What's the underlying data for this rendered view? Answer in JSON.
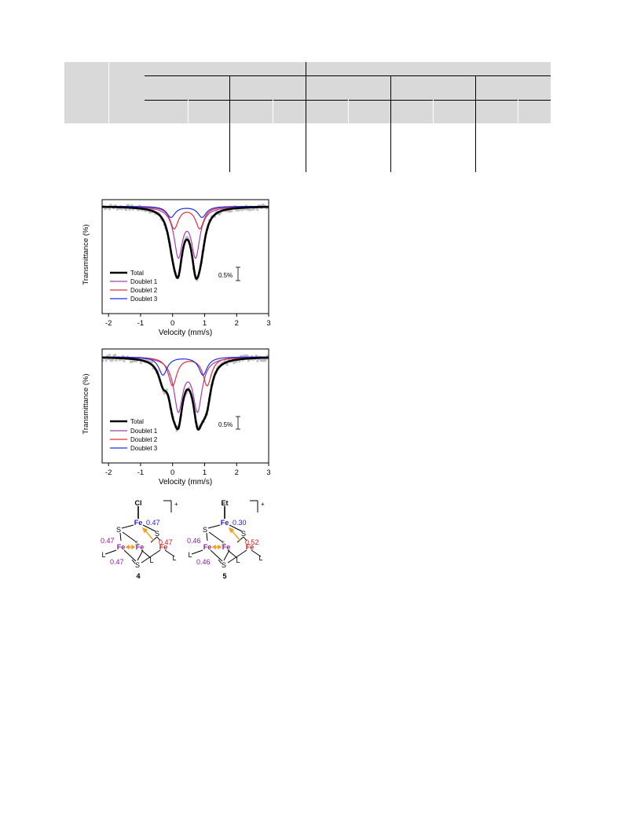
{
  "tables": {
    "header_fill": "#d9d9d9",
    "rule_color": "#000000"
  },
  "charts": {
    "chart_data": [
      {
        "type": "line",
        "xlabel": "Velocity (mm/s)",
        "ylabel": "Transmittance (%)",
        "xlim": [
          -2.2,
          3.0
        ],
        "ylim": [
          -2.45,
          0.15
        ],
        "xticks": [
          -2,
          -1,
          0,
          1,
          2,
          3
        ],
        "scale_bar_label": "0.5%",
        "legend_position": "left",
        "legend": [
          "Total",
          "Doublet 1",
          "Doublet 2",
          "Doublet 3"
        ],
        "series": [
          {
            "name": "Doublet 1",
            "color": "#a040b0",
            "width": 0.16,
            "peaks": [
              [
                0.18,
                -1.1
              ],
              [
                0.72,
                -1.1
              ]
            ]
          },
          {
            "name": "Doublet 2",
            "color": "#e0303a",
            "width": 0.16,
            "peaks": [
              [
                0.05,
                -0.5
              ],
              [
                0.85,
                -0.5
              ]
            ]
          },
          {
            "name": "Doublet 3",
            "color": "#2030e0",
            "width": 0.16,
            "peaks": [
              [
                -0.05,
                -0.25
              ],
              [
                0.92,
                -0.25
              ]
            ]
          },
          {
            "name": "Total",
            "color": "#000000",
            "sum_of": [
              "Doublet 1",
              "Doublet 2",
              "Doublet 3"
            ]
          }
        ]
      },
      {
        "type": "line",
        "xlabel": "Velocity (mm/s)",
        "ylabel": "Transmittance (%)",
        "xlim": [
          -2.2,
          3.0
        ],
        "ylim": [
          -2.05,
          0.15
        ],
        "xticks": [
          -2,
          -1,
          0,
          1,
          2,
          3
        ],
        "scale_bar_label": "0.5%",
        "legend_position": "left",
        "legend": [
          "Total",
          "Doublet 1",
          "Doublet 2",
          "Doublet 3"
        ],
        "series": [
          {
            "name": "Doublet 1",
            "color": "#a040b0",
            "width": 0.17,
            "peaks": [
              [
                0.18,
                -1.0
              ],
              [
                0.78,
                -1.0
              ]
            ]
          },
          {
            "name": "Doublet 2",
            "color": "#e0303a",
            "width": 0.16,
            "peaks": [
              [
                0.0,
                -0.55
              ],
              [
                1.08,
                -0.55
              ]
            ]
          },
          {
            "name": "Doublet 3",
            "color": "#2030e0",
            "width": 0.16,
            "peaks": [
              [
                -0.3,
                -0.35
              ],
              [
                0.95,
                -0.35
              ]
            ]
          },
          {
            "name": "Total",
            "color": "#000000",
            "sum_of": [
              "Doublet 1",
              "Doublet 2",
              "Doublet 3"
            ]
          }
        ]
      }
    ]
  },
  "structures": [
    {
      "label": "4",
      "apex_ligand": "Cl",
      "charge": "+",
      "atoms": {
        "fe_top": "Fe",
        "fe_left": "Fe",
        "fe_mid": "Fe",
        "fe_right": "Fe",
        "s_left": "S",
        "s_right": "S",
        "s_back": "S",
        "s_bottom": "S"
      },
      "ligands": {
        "l_left": "L",
        "l_mid": "L",
        "l_right": "L"
      },
      "values": {
        "top": "0.47",
        "left": "0.47",
        "right": "0.47",
        "bottom": "0.47"
      }
    },
    {
      "label": "5",
      "apex_ligand": "Et",
      "charge": "+",
      "atoms": {
        "fe_top": "Fe",
        "fe_left": "Fe",
        "fe_mid": "Fe",
        "fe_right": "Fe",
        "s_left": "S",
        "s_right": "S",
        "s_back": "S",
        "s_bottom": "S"
      },
      "ligands": {
        "l_left": "L",
        "l_mid": "L",
        "l_right": "L"
      },
      "values": {
        "top": "0.30",
        "left": "0.46",
        "right": "0.52",
        "bottom": "0.46"
      }
    }
  ],
  "colors": {
    "fe_top": "#1a1ad0",
    "fe_pair": "#8a1a9a",
    "fe_right": "#d01a1a",
    "val_top": "#1a1ad0",
    "val_pair": "#8a1a9a",
    "val_right": "#d01a1a",
    "arrow": "#f0a020",
    "back_s": "#8a8a8a"
  }
}
